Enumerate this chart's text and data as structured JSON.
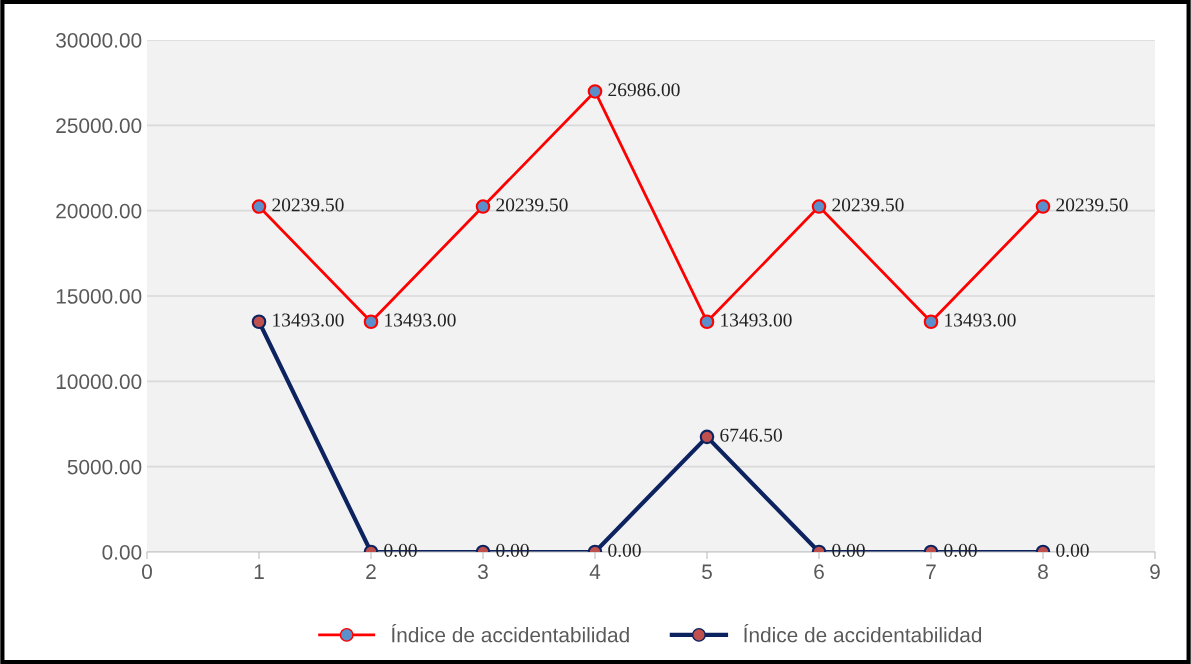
{
  "chart_data": {
    "type": "line",
    "x": [
      1,
      2,
      3,
      4,
      5,
      6,
      7,
      8
    ],
    "series": [
      {
        "name": "Índice de accidentabilidad",
        "color": "#ff0000",
        "colors": [
          "#5b8fc9",
          "#5b8fc9",
          "#5b8fc9",
          "#5b8fc9",
          "#5b8fc9",
          "#5b8fc9",
          "#5b8fc9",
          "#5b8fc9"
        ],
        "values": [
          20239.5,
          13493,
          20239.5,
          26986,
          13493,
          20239.5,
          13493,
          20239.5
        ],
        "value_labels": [
          "20239.50",
          "13493.00",
          "20239.50",
          "26986.00",
          "13493.00",
          "20239.50",
          "13493.00",
          "20239.50"
        ]
      },
      {
        "name": "Índice de accidentabilidad",
        "color": "#0d2360",
        "colors": [
          "#c0504d",
          "#c0504d",
          "#c0504d",
          "#c0504d",
          "#c0504d",
          "#c0504d",
          "#c0504d",
          "#c0504d"
        ],
        "values": [
          13493,
          0,
          0,
          0,
          6746.5,
          0,
          0,
          0
        ],
        "value_labels": [
          "13493.00",
          "0.00",
          "0.00",
          "0.00",
          "6746.50",
          "0.00",
          "0.00",
          "0.00"
        ]
      }
    ],
    "xlim": [
      0,
      9
    ],
    "xticks": [
      0,
      1,
      2,
      3,
      4,
      5,
      6,
      7,
      8,
      9
    ],
    "ylim": [
      0,
      30000
    ],
    "yticks": [
      {
        "value": 0,
        "label": "0.00"
      },
      {
        "value": 5000,
        "label": "5000.00"
      },
      {
        "value": 10000,
        "label": "10000.00"
      },
      {
        "value": 15000,
        "label": "15000.00"
      },
      {
        "value": 20000,
        "label": "20000.00"
      },
      {
        "value": 25000,
        "label": "25000.00"
      },
      {
        "value": 30000,
        "label": "30000.00"
      }
    ],
    "grid": "y",
    "legend": "bottom",
    "marker": "circle",
    "line_style": "solid"
  }
}
